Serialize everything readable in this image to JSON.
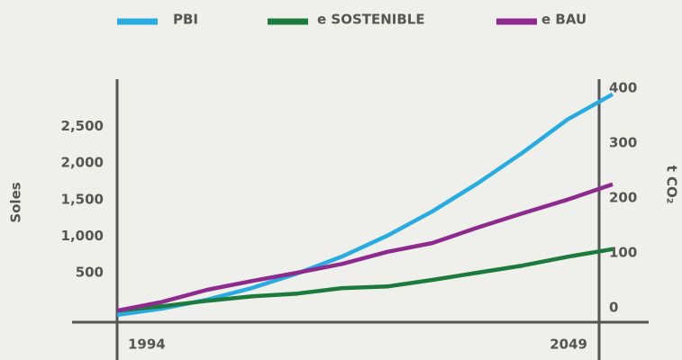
{
  "chart_data": {
    "type": "line",
    "x_label": null,
    "y_label": "Soles",
    "y2_label": "t CO₂",
    "x": [
      1994,
      1999,
      2004,
      2009,
      2014,
      2019,
      2024,
      2029,
      2034,
      2039,
      2044,
      2049
    ],
    "xlim": [
      1994,
      2049
    ],
    "xticks": [
      1994,
      2049
    ],
    "ylim": [
      -180,
      3150
    ],
    "yticks": [
      {
        "value": 500,
        "label": "500"
      },
      {
        "value": 1000,
        "label": "1,000"
      },
      {
        "value": 1500,
        "label": "1,500"
      },
      {
        "value": 2000,
        "label": "2,000"
      },
      {
        "value": 2500,
        "label": "2,500"
      }
    ],
    "y2lim": [
      -26,
      416
    ],
    "y2ticks": [
      0,
      100,
      200,
      300,
      400
    ],
    "grid": false,
    "legend": "top",
    "series": [
      {
        "name": "PBI",
        "color": "#29abe2",
        "values": [
          -80,
          6,
          130,
          290,
          488,
          722,
          1006,
          1340,
          1722,
          2142,
          2599,
          2944
        ]
      },
      {
        "name": "e SOSTENIBLE",
        "color": "#1c7a3c",
        "axis": "y2",
        "values": [
          -5,
          3,
          13,
          21,
          26,
          36,
          39,
          51,
          64,
          77,
          93,
          107
        ]
      },
      {
        "name": "e BAU",
        "color": "#8e2a8e",
        "axis": "y2",
        "values": [
          -5,
          11,
          33,
          49,
          64,
          80,
          102,
          118,
          146,
          172,
          197,
          225
        ]
      }
    ]
  }
}
